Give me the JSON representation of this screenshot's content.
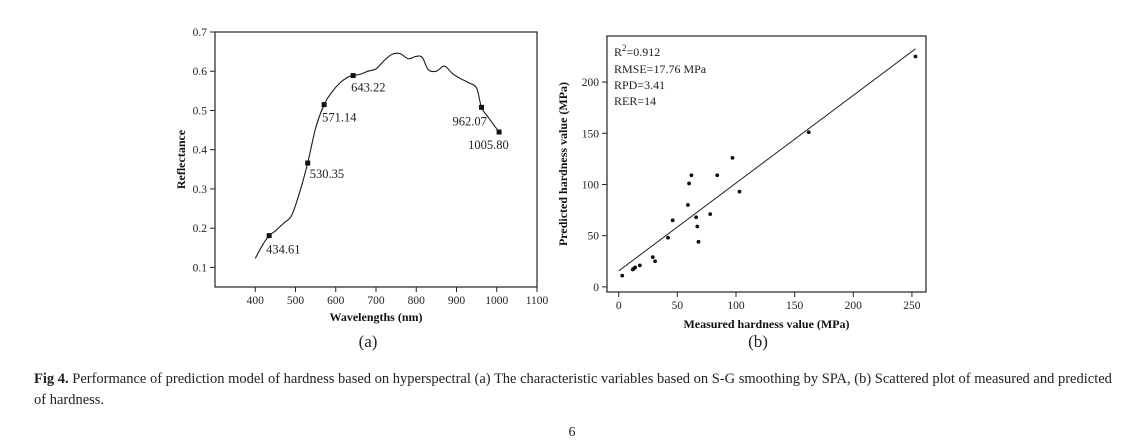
{
  "chart_data": [
    {
      "type": "line",
      "panel_label": "(a)",
      "xlabel": "Wavelengths (nm)",
      "ylabel": "Reflectance",
      "xlim": [
        300,
        1100
      ],
      "ylim": [
        0.05,
        0.7
      ],
      "xticks": [
        "400",
        "500",
        "600",
        "700",
        "800",
        "900",
        "1000",
        "1100"
      ],
      "yticks": [
        "0.1",
        "0.2",
        "0.3",
        "0.4",
        "0.5",
        "0.6",
        "0.7"
      ],
      "grid": false,
      "series": [
        {
          "x": [
            400,
            420,
            434.61,
            450,
            470,
            490,
            510,
            530.35,
            550,
            571.14,
            590,
            610,
            630,
            643.22,
            660,
            680,
            700,
            720,
            740,
            760,
            780,
            800,
            815,
            830,
            850,
            870,
            890,
            910,
            930,
            950,
            962.07,
            980,
            1005.8
          ],
          "y": [
            0.123,
            0.16,
            0.181,
            0.193,
            0.212,
            0.232,
            0.29,
            0.366,
            0.455,
            0.515,
            0.546,
            0.57,
            0.585,
            0.589,
            0.592,
            0.6,
            0.606,
            0.627,
            0.643,
            0.645,
            0.632,
            0.638,
            0.635,
            0.604,
            0.6,
            0.613,
            0.594,
            0.581,
            0.571,
            0.557,
            0.508,
            0.481,
            0.445
          ]
        }
      ],
      "selected_points": [
        {
          "x": 434.61,
          "y": 0.181,
          "label": "434.61"
        },
        {
          "x": 530.35,
          "y": 0.366,
          "label": "530.35"
        },
        {
          "x": 571.14,
          "y": 0.515,
          "label": "571.14"
        },
        {
          "x": 643.22,
          "y": 0.589,
          "label": "643.22"
        },
        {
          "x": 962.07,
          "y": 0.508,
          "label": "962.07"
        },
        {
          "x": 1005.8,
          "y": 0.445,
          "label": "1005.80"
        }
      ]
    },
    {
      "type": "scatter",
      "panel_label": "(b)",
      "xlabel": "Measured hardness value (MPa)",
      "ylabel": "Predicted hardness value (MPa)",
      "xlim": [
        -10,
        262
      ],
      "ylim": [
        -5,
        245
      ],
      "xticks": [
        "0",
        "50",
        "100",
        "150",
        "200",
        "250"
      ],
      "yticks": [
        "0",
        "50",
        "100",
        "150",
        "200"
      ],
      "grid": false,
      "points": [
        {
          "x": 3,
          "y": 11
        },
        {
          "x": 12,
          "y": 17
        },
        {
          "x": 13,
          "y": 18
        },
        {
          "x": 14,
          "y": 19
        },
        {
          "x": 18,
          "y": 21
        },
        {
          "x": 29,
          "y": 29
        },
        {
          "x": 31,
          "y": 25
        },
        {
          "x": 42,
          "y": 48
        },
        {
          "x": 46,
          "y": 65
        },
        {
          "x": 59,
          "y": 80
        },
        {
          "x": 60,
          "y": 101
        },
        {
          "x": 62,
          "y": 109
        },
        {
          "x": 66,
          "y": 68
        },
        {
          "x": 67,
          "y": 59
        },
        {
          "x": 68,
          "y": 44
        },
        {
          "x": 78,
          "y": 71
        },
        {
          "x": 84,
          "y": 109
        },
        {
          "x": 97,
          "y": 126
        },
        {
          "x": 103,
          "y": 93
        },
        {
          "x": 162,
          "y": 151
        },
        {
          "x": 253,
          "y": 225
        }
      ],
      "fit_line": {
        "x": [
          0,
          253
        ],
        "y": [
          15.6,
          232.5
        ]
      },
      "stats": {
        "r2_label": "R",
        "r2_exp": "2",
        "r2_value": "=0.912",
        "rmse": "RMSE=17.76 MPa",
        "rpd": "RPD=3.41",
        "rer": "RER=14"
      }
    }
  ],
  "caption": {
    "label": "Fig 4.",
    "text": " Performance of prediction model of hardness based on hyperspectral (a) The characteristic variables based on S-G smoothing by SPA, (b) Scattered plot of measured and predicted of hardness."
  },
  "page_number": "6"
}
